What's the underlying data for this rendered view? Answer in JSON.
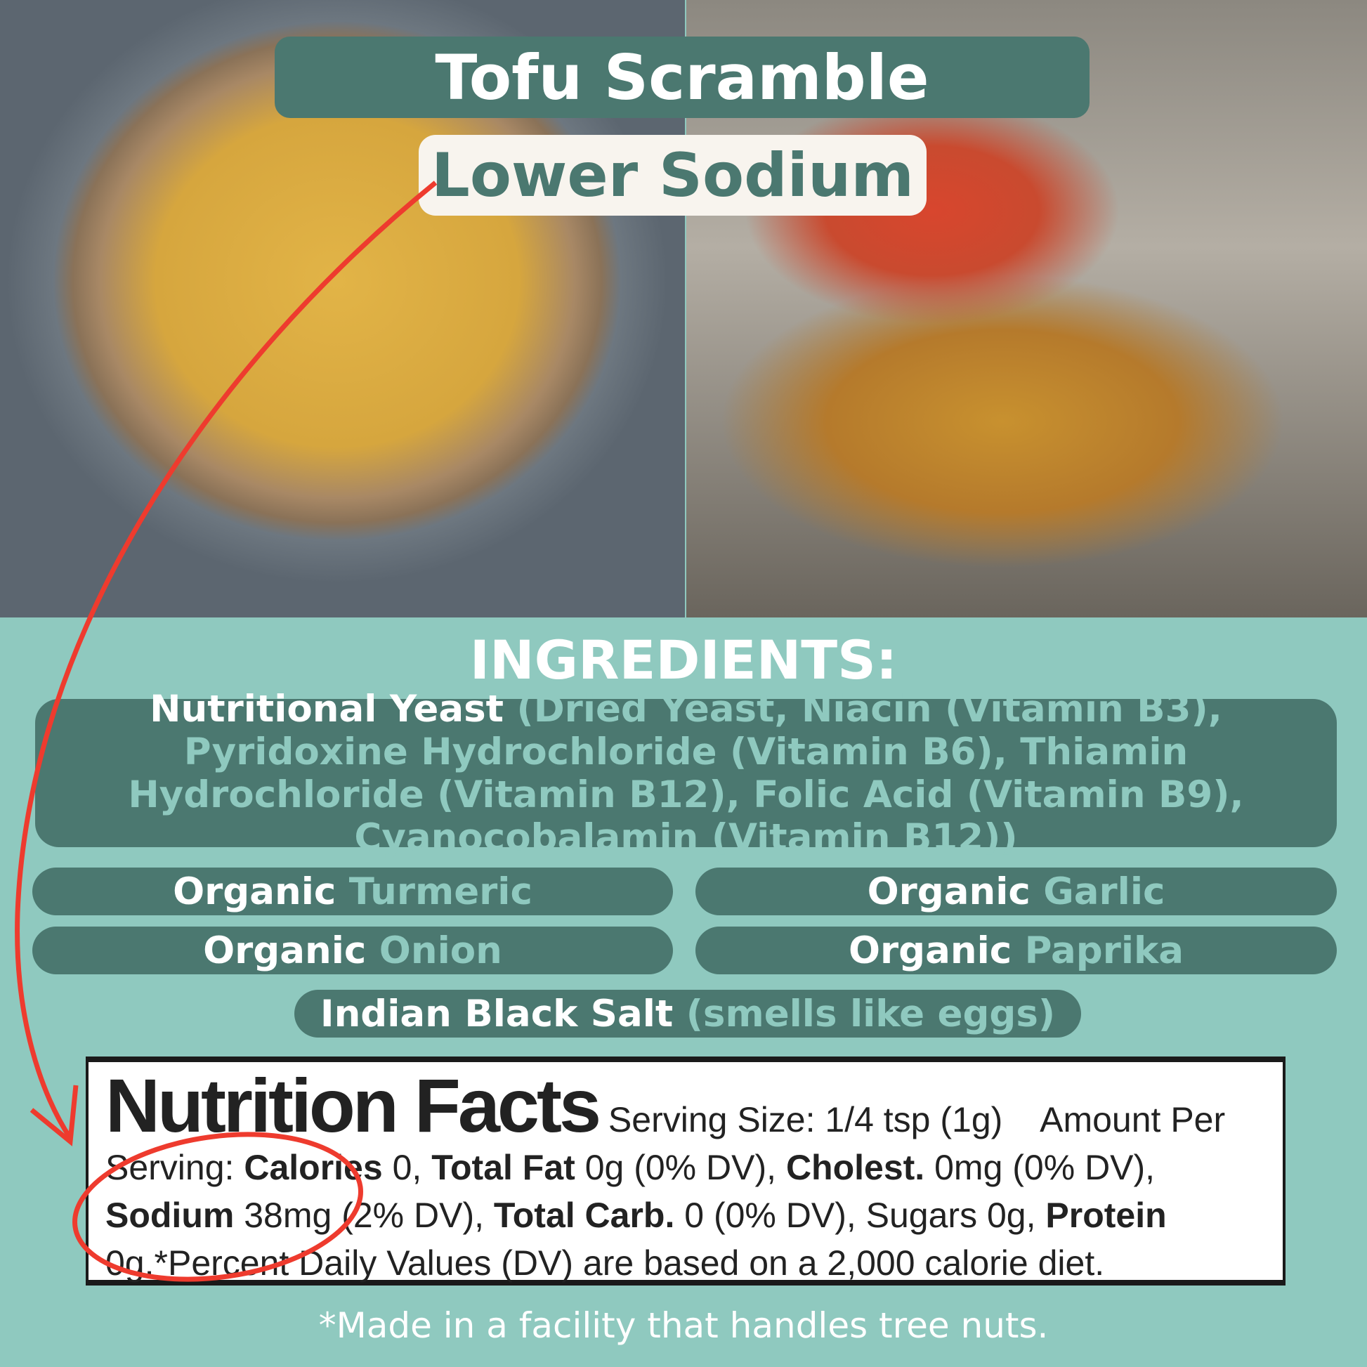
{
  "header": {
    "title": "Tofu Scramble",
    "subtitle": "Lower Sodium"
  },
  "ingredients": {
    "heading": "INGREDIENTS:",
    "yeast": {
      "name": "Nutritional Yeast",
      "detail": "(Dried Yeast, Niacin (Vitamin B3), Pyridoxine Hydrochloride (Vitamin B6), Thiamin Hydrochloride (Vitamin B12), Folic Acid (Vitamin B9), Cyanocobalamin (Vitamin B12))"
    },
    "items": [
      {
        "prefix": "Organic",
        "name": "Turmeric"
      },
      {
        "prefix": "Organic",
        "name": "Garlic"
      },
      {
        "prefix": "Organic",
        "name": "Onion"
      },
      {
        "prefix": "Organic",
        "name": "Paprika"
      }
    ],
    "salt": {
      "name": "Indian Black Salt",
      "detail": "(smells like eggs)"
    }
  },
  "nutrition": {
    "title": "Nutrition Facts",
    "serving": "Serving Size: 1/4 tsp (1g)",
    "amount_per": "Amount Per Serving:",
    "calories_label": "Calories",
    "calories": "0,",
    "fat_label": "Total Fat",
    "fat": "0g (0% DV),",
    "chol_label": "Cholest.",
    "chol": "0mg (0% DV),",
    "sodium_label": "Sodium",
    "sodium": "38mg (2% DV),",
    "carb_label": "Total Carb.",
    "carb": "0 (0% DV), Sugars 0g,",
    "protein_label": "Protein",
    "protein": "0g.",
    "footnote": "*Percent Daily Values (DV) are based on a 2,000 calorie diet."
  },
  "footer": "*Made in a facility that handles tree nuts.",
  "colors": {
    "background": "#8fc9bf",
    "pill": "#4b7870",
    "annotation": "#ee3b2e"
  }
}
